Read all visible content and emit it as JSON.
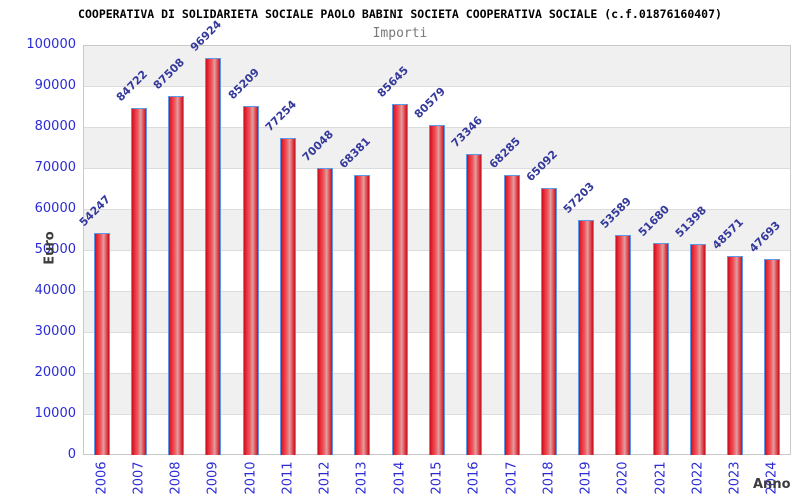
{
  "header": {
    "title": "COOPERATIVA DI SOLIDARIETA SOCIALE PAOLO BABINI SOCIETA COOPERATIVA SOCIALE (c.f.01876160407)",
    "subtitle": "Importi"
  },
  "chart_data": {
    "type": "bar",
    "title": "COOPERATIVA DI SOLIDARIETA SOCIALE PAOLO BABINI SOCIETA COOPERATIVA SOCIALE (c.f.01876160407)",
    "subtitle": "Importi",
    "xlabel": "Anno",
    "ylabel": "Euro",
    "categories": [
      "2006",
      "2007",
      "2008",
      "2009",
      "2010",
      "2011",
      "2012",
      "2013",
      "2014",
      "2015",
      "2016",
      "2017",
      "2018",
      "2019",
      "2020",
      "2021",
      "2022",
      "2023",
      "2024"
    ],
    "values": [
      54247,
      84722,
      87508,
      96924,
      85209,
      77254,
      70048,
      68381,
      85645,
      80579,
      73346,
      68285,
      65092,
      57203,
      53589,
      51680,
      51398,
      48571,
      47693
    ],
    "ylim": [
      0,
      100000
    ],
    "ytick_step": 10000,
    "grid": "horizontal, alternating shaded bands",
    "legend": "none",
    "style": {
      "bar_fill": "#ea2e3a",
      "bar_fill_highlight": "#dfa0a2",
      "bar_border": "#5d99e8",
      "axis_tick_label_color": "#2b2bd5",
      "value_label_color": "#34399b",
      "band_color": "#f0f0f0",
      "grid_color": "#dcdcdc",
      "title_color": "#000000",
      "subtitle_color": "#7a7a7a",
      "axis_title_color": "#3c3c3c"
    }
  }
}
